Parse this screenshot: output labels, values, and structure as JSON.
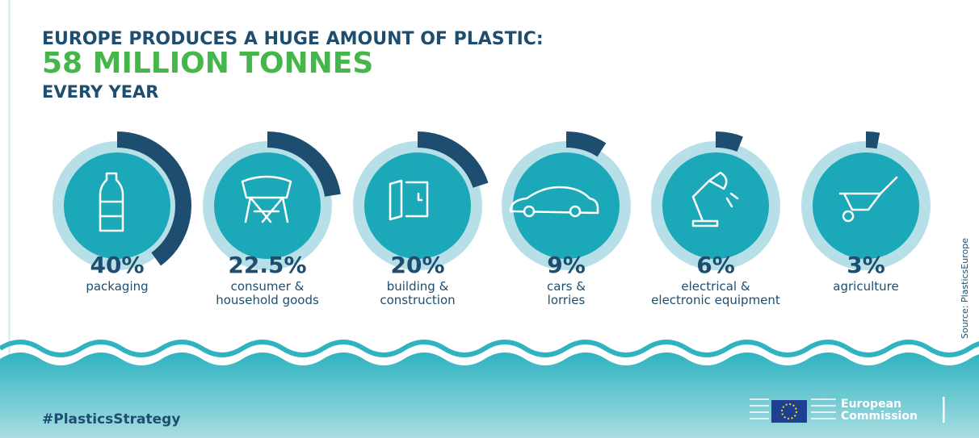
{
  "chart_data": {
    "type": "arc",
    "title": "EUROPE PRODUCES A HUGE AMOUNT OF PLASTIC:",
    "subtitle": "58 MILLION TONNES",
    "annotations": [
      "EVERY YEAR"
    ],
    "categories": [
      "packaging",
      "consumer &\nhousehold goods",
      "building &\nconstruction",
      "cars &\nlorries",
      "electrical &\nelectronic equipment",
      "agriculture"
    ],
    "values": [
      40,
      22.5,
      20,
      9,
      6,
      3
    ],
    "value_labels": [
      "40%",
      "22.5%",
      "20%",
      "9%",
      "6%",
      "3%"
    ],
    "color": "#1d4e6f",
    "source": "Source: PlasticsEurope"
  },
  "footer": {
    "hashtag": "#PlasticsStrategy",
    "logo_text": [
      "European",
      "Commission"
    ]
  }
}
